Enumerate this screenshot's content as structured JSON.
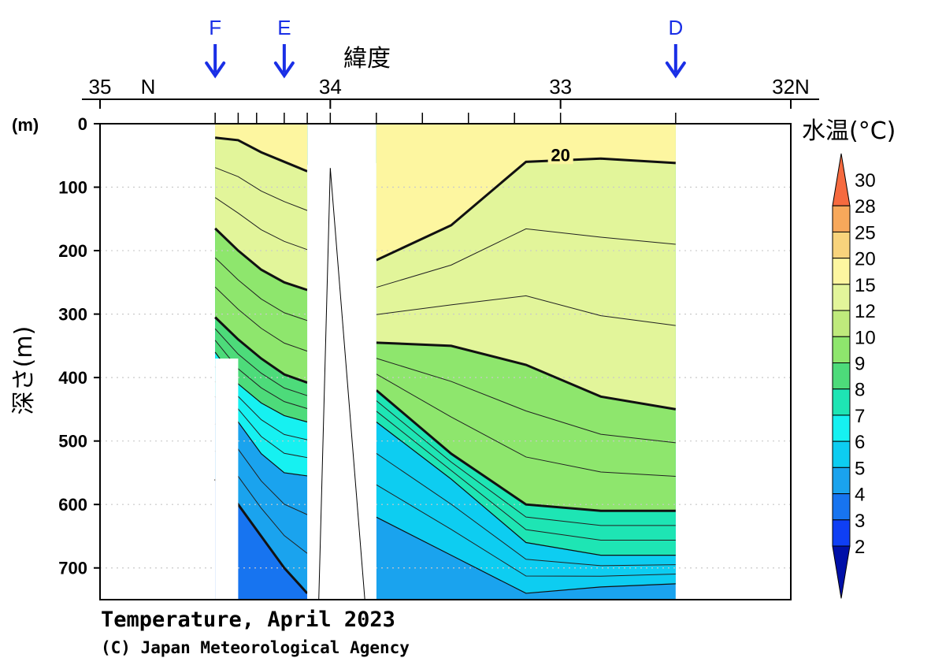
{
  "chart_data": {
    "type": "contour-section",
    "title": "Temperature, April 2023",
    "credit": "(C) Japan Meteorological Agency",
    "xlabel": "緯度",
    "ylabel": "深さ(m)",
    "yunit": "(m)",
    "colorbar_title": "水温(°C)",
    "x_axis": {
      "direction": "decreasing latitude left to right",
      "xlim": [
        35,
        32
      ],
      "ticks": [
        {
          "value": 35,
          "label": "35"
        },
        {
          "value": 34,
          "label": "34"
        },
        {
          "value": 33,
          "label": "33"
        },
        {
          "value": 32,
          "label": "32N"
        }
      ],
      "hemisphere_label": "N",
      "station_latitudes": [
        34.5,
        34.4,
        34.32,
        34.2,
        34.1,
        34.0,
        33.8,
        33.6,
        33.4,
        33.2,
        33.0,
        32.5
      ]
    },
    "y_axis": {
      "ylim": [
        0,
        750
      ],
      "inverted": true,
      "ticks": [
        0,
        100,
        200,
        300,
        400,
        500,
        600,
        700
      ],
      "grid": "dotted"
    },
    "stations": [
      {
        "label": "F",
        "lat": 34.5
      },
      {
        "label": "E",
        "lat": 34.2
      },
      {
        "label": "D",
        "lat": 32.5
      }
    ],
    "contour_levels": [
      2,
      3,
      4,
      5,
      6,
      7,
      8,
      9,
      10,
      12,
      15,
      20,
      25,
      28,
      30
    ],
    "bold_contours": [
      5,
      10,
      15,
      20
    ],
    "contour_labels": [
      {
        "value": "20",
        "lat": 33.0,
        "depth": 50
      }
    ],
    "colorbar": {
      "labels": [
        "30",
        "28",
        "25",
        "20",
        "15",
        "12",
        "10",
        "9",
        "8",
        "7",
        "6",
        "5",
        "4",
        "3",
        "2"
      ],
      "colors": [
        "#f66a3f",
        "#f7a85b",
        "#f8d37c",
        "#fdf6a0",
        "#e2f59a",
        "#bfea7c",
        "#8ee66d",
        "#4ddb7a",
        "#1ee5b4",
        "#16f1f1",
        "#0dcdf1",
        "#1aa3ee",
        "#1774f0",
        "#0f3ff4",
        "#0a1ecc",
        "#0010a8"
      ],
      "extend": "both"
    },
    "sections": [
      {
        "name": "west",
        "lat_range": [
          34.5,
          34.1
        ],
        "contours": [
          {
            "level": 20,
            "depth": [
              22,
              26,
              45,
              60,
              75
            ]
          },
          {
            "level": 15,
            "depth": [
              165,
              200,
              230,
              250,
              262
            ]
          },
          {
            "level": 10,
            "depth": [
              305,
              340,
              370,
              395,
              408
            ]
          },
          {
            "level": 9,
            "depth": [
              360,
              410,
              440,
              460,
              470
            ]
          },
          {
            "level": 7,
            "depth": [
              430,
              470,
              520,
              550,
              555
            ]
          },
          {
            "level": 5,
            "depth": [
              560,
              600,
              650,
              700,
              740
            ]
          }
        ]
      },
      {
        "name": "east",
        "lat_range": [
          33.8,
          32.5
        ],
        "contours": [
          {
            "level": 20,
            "depth": [
              215,
              160,
              60,
              55,
              62
            ]
          },
          {
            "level": 15,
            "depth": [
              345,
              350,
              380,
              430,
              450
            ]
          },
          {
            "level": 10,
            "depth": [
              420,
              520,
              600,
              610,
              610
            ]
          },
          {
            "level": 8,
            "depth": [
              470,
              560,
              660,
              680,
              680
            ]
          },
          {
            "level": 6,
            "depth": [
              620,
              680,
              740,
              730,
              725
            ]
          }
        ]
      }
    ],
    "legend_position": "right"
  }
}
